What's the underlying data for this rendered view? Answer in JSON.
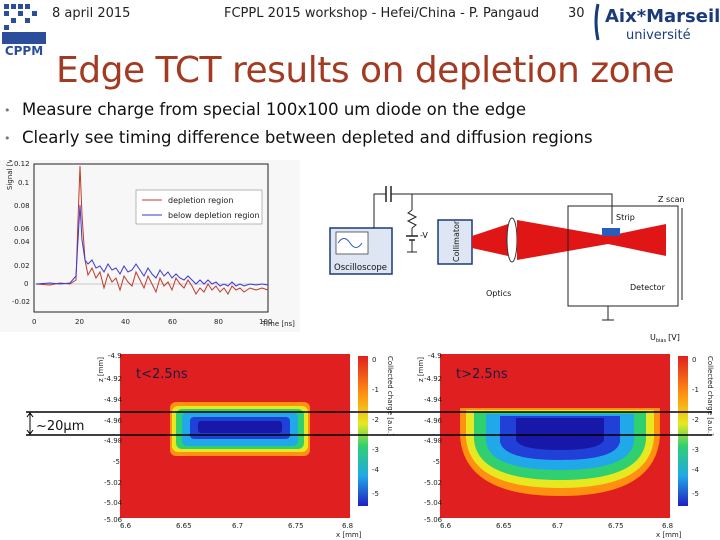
{
  "header": {
    "date": "8 april 2015",
    "title": "FCPPL 2015 workshop - Hefei/China - P. Pangaud",
    "page_number": "30"
  },
  "logos": {
    "amu_line1": "Aix*Marseille",
    "amu_line2": "université",
    "cppm": "CPPM"
  },
  "slide_title": "Edge TCT results on depletion zone",
  "bullets": [
    "Measure charge from special 100x100 um diode on the edge",
    "Clearly see timing difference between depleted and diffusion regions"
  ],
  "waveform_plot": {
    "ylabel": "Signal [V]",
    "xlabel": "Time [ns]",
    "yticks": [
      "0.12",
      "0.1",
      "0.08",
      "0.06",
      "0.04",
      "0.02",
      "0",
      "-0.02"
    ],
    "xticks": [
      "0",
      "20",
      "40",
      "60",
      "80",
      "100"
    ],
    "legend": [
      "depletion region",
      "below depletion region"
    ]
  },
  "setup": {
    "oscilloscope": "Oscilloscope",
    "hv": "-V",
    "collimator": "Collimator",
    "optics": "Optics",
    "strip": "Strip",
    "zscan": "Z scan",
    "detector": "Detector",
    "ubias": "U",
    "ubias_sub": "bias",
    "ubias_unit": "[V]"
  },
  "maps": {
    "left_label": "t<2.5ns",
    "right_label": "t>2.5ns",
    "ylabel": "z [mm]",
    "xlabel": "x [mm]",
    "zlabel": "Collected charge [a.u.]",
    "yticks": [
      "-4.9",
      "-4.92",
      "-4.94",
      "-4.96",
      "-4.98",
      "-5",
      "-5.02",
      "-5.04",
      "-5.06"
    ],
    "xticks_left": [
      "6.6",
      "6.65",
      "6.7",
      "6.75",
      "6.8"
    ],
    "xticks_right": [
      "6.6",
      "6.65",
      "6.7",
      "6.75",
      "6.8"
    ],
    "scale_left": [
      "0",
      "-1",
      "-2",
      "-3",
      "-4",
      "-5"
    ],
    "scale_right": [
      "0",
      "-1",
      "-2",
      "-3",
      "-4",
      "-5"
    ],
    "width_annotation": "~20µm"
  },
  "colors": {
    "title": "#a33a22",
    "depletion_line": "#c0392b",
    "below_line": "#3a3ad0",
    "laser": "#e01515"
  }
}
